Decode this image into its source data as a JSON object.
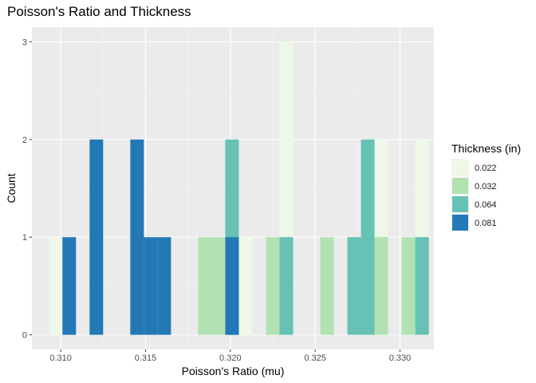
{
  "chart_data": {
    "type": "bar",
    "title": "Poisson's Ratio and Thickness",
    "xlabel": "Poisson's Ratio (mu)",
    "ylabel": "Count",
    "xlim": [
      0.3083,
      0.332
    ],
    "ylim": [
      -0.15,
      3.15
    ],
    "x_ticks": [
      "0.310",
      "0.315",
      "0.320",
      "0.325",
      "0.330"
    ],
    "x_tick_values": [
      0.31,
      0.315,
      0.32,
      0.325,
      0.33
    ],
    "y_ticks": [
      "0",
      "1",
      "2",
      "3"
    ],
    "y_tick_values": [
      0,
      1,
      2,
      3
    ],
    "bin_width": 0.0008,
    "legend": {
      "title": "Thickness (in)",
      "position": "right"
    },
    "series": [
      {
        "name": "0.022",
        "color": "#edf8e9",
        "bars": [
          {
            "x": 0.3097,
            "count": 1
          },
          {
            "x": 0.3209,
            "count": 1
          },
          {
            "x": 0.3233,
            "count": 3
          },
          {
            "x": 0.3289,
            "count": 2
          },
          {
            "x": 0.3313,
            "count": 2
          }
        ]
      },
      {
        "name": "0.032",
        "color": "#b2e2b2",
        "bars": [
          {
            "x": 0.3185,
            "count": 1
          },
          {
            "x": 0.3193,
            "count": 1
          },
          {
            "x": 0.3225,
            "count": 1
          },
          {
            "x": 0.3257,
            "count": 1
          },
          {
            "x": 0.3289,
            "count": 1
          },
          {
            "x": 0.3305,
            "count": 1
          }
        ]
      },
      {
        "name": "0.064",
        "color": "#66c2b4",
        "bars": [
          {
            "x": 0.3201,
            "count": 2
          },
          {
            "x": 0.3233,
            "count": 1
          },
          {
            "x": 0.3273,
            "count": 1
          },
          {
            "x": 0.3281,
            "count": 2
          },
          {
            "x": 0.3313,
            "count": 1
          }
        ]
      },
      {
        "name": "0.081",
        "color": "#2379b5",
        "bars": [
          {
            "x": 0.3105,
            "count": 1
          },
          {
            "x": 0.3121,
            "count": 2
          },
          {
            "x": 0.3145,
            "count": 2
          },
          {
            "x": 0.3153,
            "count": 1
          },
          {
            "x": 0.3161,
            "count": 1
          },
          {
            "x": 0.3201,
            "count": 1
          }
        ]
      }
    ],
    "grid": true
  }
}
